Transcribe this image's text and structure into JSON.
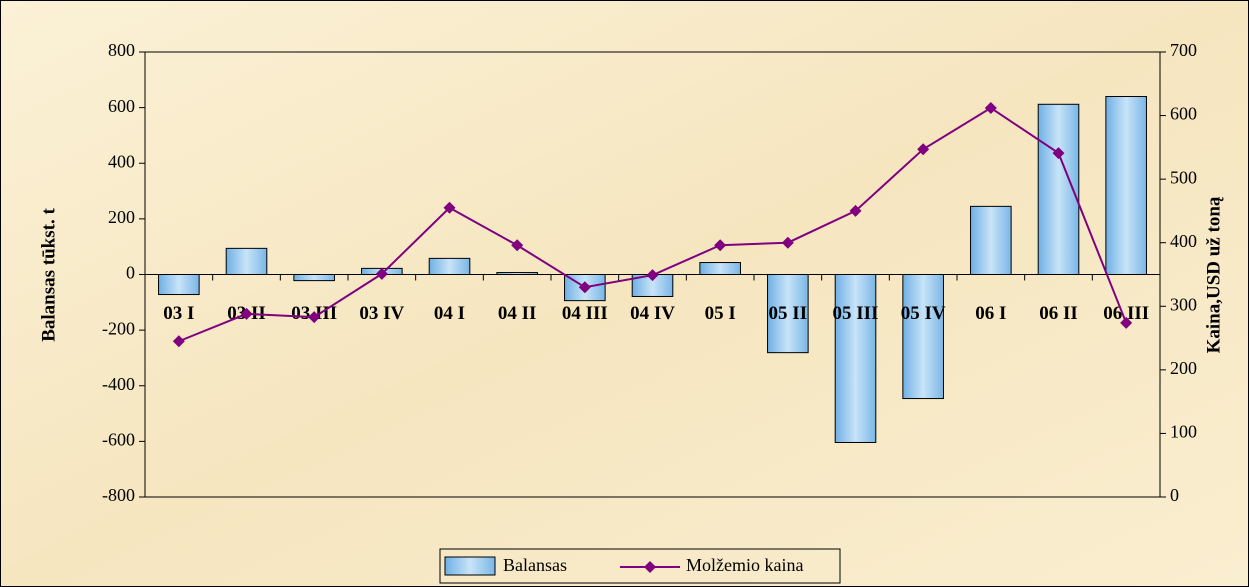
{
  "chart_data": {
    "type": "bar_line",
    "categories": [
      "03 I",
      "03 II",
      "03 III",
      "03 IV",
      "04 I",
      "04 II",
      "04 III",
      "04 IV",
      "05 I",
      "05 II",
      "05 III",
      "05 IV",
      "06 I",
      "06 II",
      "06 III"
    ],
    "series": [
      {
        "name": "Balansas",
        "type": "bar",
        "color": "#9ccbef",
        "axis": "y",
        "values": [
          -72,
          94,
          -22,
          22,
          58,
          7,
          -94,
          -79,
          43,
          -281,
          -604,
          -446,
          245,
          612,
          640
        ]
      },
      {
        "name": "Molžemio kaina",
        "type": "line",
        "color": "#800080",
        "axis": "y2",
        "values": [
          245,
          288,
          283,
          351,
          455,
          396,
          330,
          349,
          396,
          400,
          450,
          547,
          612,
          541,
          274
        ]
      }
    ],
    "ylabel": "Balansas tūkst. t",
    "y2label": "Kaina,USD už toną",
    "ylim": [
      -800,
      800
    ],
    "yticks": [
      -800,
      -600,
      -400,
      -200,
      0,
      200,
      400,
      600,
      800
    ],
    "y2lim": [
      0,
      700
    ],
    "y2ticks": [
      0,
      100,
      200,
      300,
      400,
      500,
      600,
      700
    ],
    "legend": "bottom",
    "grid": false
  }
}
